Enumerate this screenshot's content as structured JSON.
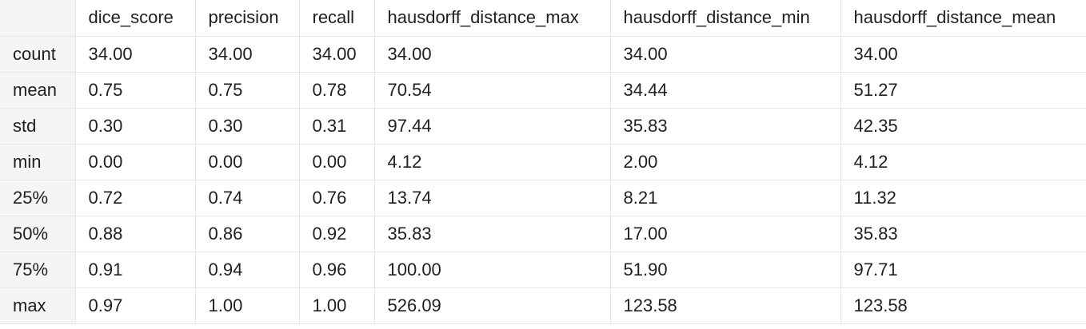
{
  "table": {
    "columns": [
      "",
      "dice_score",
      "precision",
      "recall",
      "hausdorff_distance_max",
      "hausdorff_distance_min",
      "hausdorff_distance_mean"
    ],
    "rows": [
      [
        "count",
        "34.00",
        "34.00",
        "34.00",
        "34.00",
        "34.00",
        "34.00"
      ],
      [
        "mean",
        "0.75",
        "0.75",
        "0.78",
        "70.54",
        "34.44",
        "51.27"
      ],
      [
        "std",
        "0.30",
        "0.30",
        "0.31",
        "97.44",
        "35.83",
        "42.35"
      ],
      [
        "min",
        "0.00",
        "0.00",
        "0.00",
        "4.12",
        "2.00",
        "4.12"
      ],
      [
        "25%",
        "0.72",
        "0.74",
        "0.76",
        "13.74",
        "8.21",
        "11.32"
      ],
      [
        "50%",
        "0.88",
        "0.86",
        "0.92",
        "35.83",
        "17.00",
        "35.83"
      ],
      [
        "75%",
        "0.91",
        "0.94",
        "0.96",
        "100.00",
        "51.90",
        "97.71"
      ],
      [
        "max",
        "0.97",
        "1.00",
        "1.00",
        "526.09",
        "123.58",
        "123.58"
      ]
    ]
  }
}
